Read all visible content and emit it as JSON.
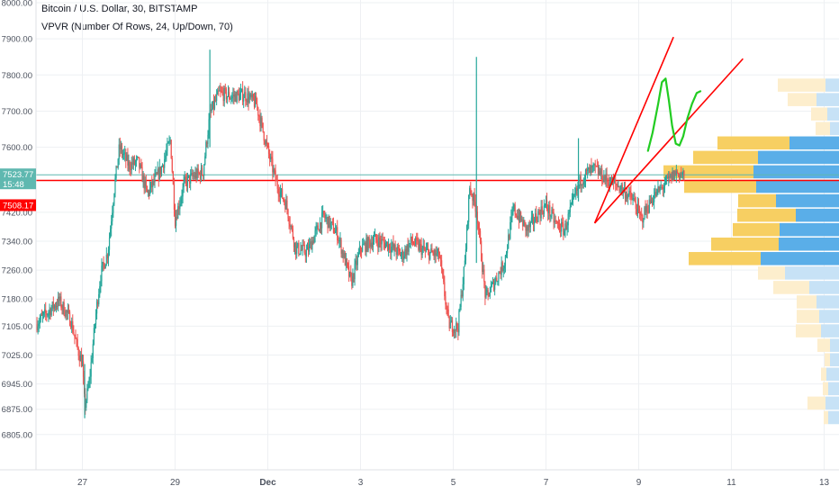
{
  "header": {
    "title": "Bitcoin / U.S. Dollar, 30, BITSTAMP",
    "indicator": "VPVR (Number Of Rows, 24, Up/Down, 70)"
  },
  "price_labels": {
    "last_price": "7523.77",
    "countdown": "15:48",
    "line_price": "7508.17"
  },
  "colors": {
    "up": "#26a69a",
    "down": "#ef5350",
    "vp_up": "#5aaee8",
    "vp_down": "#f7cf62",
    "vp_up_faded": "#c7e2f6",
    "vp_down_faded": "#fdeecd",
    "line": "#ff0000",
    "sketch": "#22cc22",
    "last_price_line": "#5fb8b0"
  },
  "chart_data": {
    "type": "candlestick",
    "title": "Bitcoin / U.S. Dollar, 30, BITSTAMP",
    "xlabel": "",
    "ylabel": "",
    "ylim": [
      6750,
      8000
    ],
    "y_ticks": [
      8000.0,
      7900.0,
      7800.0,
      7700.0,
      7600.0,
      7508.17,
      7420.0,
      7340.0,
      7260.0,
      7180.0,
      7105.0,
      7025.0,
      6945.0,
      6875.0,
      6805.0
    ],
    "y_tick_labels": [
      "8000.00",
      "7900.00",
      "7800.00",
      "7700.00",
      "7600.00",
      "7508.17",
      "7420.00",
      "7340.00",
      "7260.00",
      "7180.00",
      "7105.00",
      "7025.00",
      "6945.00",
      "6875.00",
      "6805.00"
    ],
    "x_tick_days": [
      27,
      29,
      31,
      33,
      35,
      37,
      39,
      41,
      43
    ],
    "x_tick_labels": [
      "27",
      "29",
      "Dec",
      "3",
      "5",
      "7",
      "9",
      "11",
      "13"
    ],
    "x_range_days": [
      26.0,
      43.85
    ],
    "horizontal_line": 7508.17,
    "last_price": 7523.77,
    "price_path": [
      [
        26.0,
        7110
      ],
      [
        26.3,
        7150
      ],
      [
        26.5,
        7175
      ],
      [
        26.75,
        7120
      ],
      [
        26.9,
        7040
      ],
      [
        27.0,
        7000
      ],
      [
        27.05,
        6880
      ],
      [
        27.15,
        6950
      ],
      [
        27.3,
        7150
      ],
      [
        27.4,
        7250
      ],
      [
        27.55,
        7310
      ],
      [
        27.7,
        7500
      ],
      [
        27.8,
        7600
      ],
      [
        28.0,
        7550
      ],
      [
        28.2,
        7560
      ],
      [
        28.4,
        7470
      ],
      [
        28.7,
        7540
      ],
      [
        28.9,
        7620
      ],
      [
        29.0,
        7400
      ],
      [
        29.2,
        7500
      ],
      [
        29.4,
        7520
      ],
      [
        29.6,
        7530
      ],
      [
        29.75,
        7690
      ],
      [
        29.95,
        7750
      ],
      [
        30.2,
        7740
      ],
      [
        30.5,
        7745
      ],
      [
        30.75,
        7720
      ],
      [
        31.0,
        7590
      ],
      [
        31.2,
        7495
      ],
      [
        31.4,
        7440
      ],
      [
        31.6,
        7320
      ],
      [
        31.85,
        7310
      ],
      [
        32.2,
        7410
      ],
      [
        32.5,
        7360
      ],
      [
        32.8,
        7225
      ],
      [
        33.0,
        7320
      ],
      [
        33.3,
        7345
      ],
      [
        33.6,
        7330
      ],
      [
        33.9,
        7300
      ],
      [
        34.1,
        7340
      ],
      [
        34.4,
        7310
      ],
      [
        34.7,
        7300
      ],
      [
        34.9,
        7110
      ],
      [
        35.1,
        7100
      ],
      [
        35.25,
        7280
      ],
      [
        35.35,
        7490
      ],
      [
        35.5,
        7430
      ],
      [
        35.7,
        7180
      ],
      [
        35.9,
        7230
      ],
      [
        36.1,
        7280
      ],
      [
        36.3,
        7430
      ],
      [
        36.6,
        7370
      ],
      [
        36.8,
        7410
      ],
      [
        37.0,
        7440
      ],
      [
        37.2,
        7390
      ],
      [
        37.4,
        7370
      ],
      [
        37.6,
        7455
      ],
      [
        37.75,
        7510
      ],
      [
        37.9,
        7530
      ],
      [
        38.05,
        7540
      ],
      [
        38.3,
        7510
      ],
      [
        38.6,
        7490
      ],
      [
        38.9,
        7450
      ],
      [
        39.05,
        7400
      ],
      [
        39.3,
        7460
      ],
      [
        39.55,
        7495
      ],
      [
        39.8,
        7530
      ],
      [
        40.0,
        7523
      ]
    ],
    "spikes": [
      {
        "day": 35.5,
        "high": 7850,
        "low": 7280
      },
      {
        "day": 29.75,
        "high": 7870,
        "low": 7600
      },
      {
        "day": 27.05,
        "high": 7000,
        "low": 6850
      },
      {
        "day": 37.7,
        "high": 7625,
        "low": 7450
      }
    ],
    "volume_profile": [
      {
        "price": 7770,
        "up": 15,
        "down": 53,
        "faded": true
      },
      {
        "price": 7730,
        "up": 25,
        "down": 32,
        "faded": true
      },
      {
        "price": 7690,
        "up": 13,
        "down": 18,
        "faded": true
      },
      {
        "price": 7650,
        "up": 10,
        "down": 16,
        "faded": true
      },
      {
        "price": 7610,
        "up": 55,
        "down": 80,
        "faded": false
      },
      {
        "price": 7570,
        "up": 90,
        "down": 72,
        "faded": false
      },
      {
        "price": 7530,
        "up": 95,
        "down": 100,
        "faded": false
      },
      {
        "price": 7490,
        "up": 92,
        "down": 80,
        "faded": false
      },
      {
        "price": 7450,
        "up": 70,
        "down": 42,
        "faded": false
      },
      {
        "price": 7410,
        "up": 48,
        "down": 65,
        "faded": false
      },
      {
        "price": 7370,
        "up": 66,
        "down": 52,
        "faded": false
      },
      {
        "price": 7330,
        "up": 67,
        "down": 75,
        "faded": false
      },
      {
        "price": 7290,
        "up": 87,
        "down": 80,
        "faded": false
      },
      {
        "price": 7250,
        "up": 60,
        "down": 30,
        "faded": true
      },
      {
        "price": 7210,
        "up": 33,
        "down": 40,
        "faded": true
      },
      {
        "price": 7170,
        "up": 25,
        "down": 22,
        "faded": true
      },
      {
        "price": 7130,
        "up": 22,
        "down": 25,
        "faded": true
      },
      {
        "price": 7090,
        "up": 20,
        "down": 28,
        "faded": true
      },
      {
        "price": 7050,
        "up": 10,
        "down": 14,
        "faded": true
      },
      {
        "price": 7010,
        "up": 10,
        "down": 6,
        "faded": true
      },
      {
        "price": 6970,
        "up": 14,
        "down": 6,
        "faded": true
      },
      {
        "price": 6930,
        "up": 12,
        "down": 6,
        "faded": true
      },
      {
        "price": 6890,
        "up": 15,
        "down": 20,
        "faded": true
      },
      {
        "price": 6850,
        "up": 12,
        "down": 5,
        "faded": true
      }
    ],
    "trend_lines": [
      {
        "from": [
          38.05,
          7390
        ],
        "to": [
          39.75,
          7905
        ]
      },
      {
        "from": [
          38.05,
          7390
        ],
        "to": [
          41.25,
          7845
        ]
      }
    ],
    "sketch_path": [
      [
        39.2,
        7590
      ],
      [
        39.3,
        7640
      ],
      [
        39.42,
        7720
      ],
      [
        39.5,
        7780
      ],
      [
        39.58,
        7790
      ],
      [
        39.65,
        7730
      ],
      [
        39.72,
        7660
      ],
      [
        39.8,
        7610
      ],
      [
        39.88,
        7605
      ],
      [
        39.96,
        7630
      ],
      [
        40.05,
        7680
      ],
      [
        40.15,
        7720
      ],
      [
        40.25,
        7750
      ],
      [
        40.33,
        7755
      ]
    ]
  }
}
